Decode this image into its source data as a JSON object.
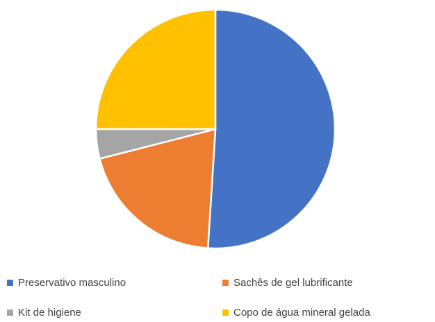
{
  "chart_data": {
    "type": "pie",
    "title": "",
    "series": [
      {
        "categories": [
          "Preservativo masculino",
          "Sachês de gel lubrificante",
          "Kit de higiene",
          "Copo de água mineral gelada"
        ],
        "values": [
          51,
          20,
          4,
          25
        ]
      }
    ],
    "colors": [
      "#4472C4",
      "#ED7D31",
      "#A5A5A5",
      "#FFC000"
    ],
    "start_angle_deg": 0,
    "direction": "clockwise",
    "legend_position": "bottom"
  },
  "legend": {
    "items": [
      {
        "label": "Preservativo masculino",
        "color": "#4472C4"
      },
      {
        "label": "Sachês de gel lubrificante",
        "color": "#ED7D31"
      },
      {
        "label": "Kit de higiene",
        "color": "#A5A5A5"
      },
      {
        "label": "Copo de água mineral gelada",
        "color": "#FFC000"
      }
    ]
  }
}
